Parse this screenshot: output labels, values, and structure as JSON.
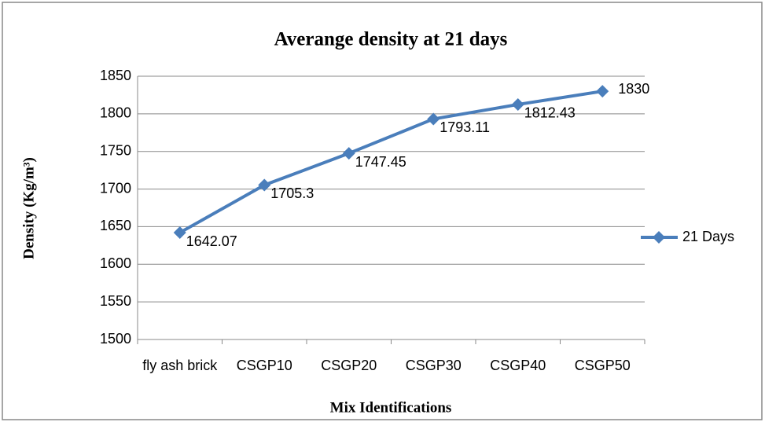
{
  "chart_data": {
    "type": "line",
    "title": "Averange density at 21 days",
    "x_label": "Mix Identifications",
    "y_label": "Density (Kg/m³)",
    "categories": [
      "fly ash brick",
      "CSGP10",
      "CSGP20",
      "CSGP30",
      "CSGP40",
      "CSGP50"
    ],
    "series": [
      {
        "name": "21 Days",
        "color": "#4a7ebb",
        "values": [
          1642.07,
          1705.3,
          1747.45,
          1793.11,
          1812.43,
          1830
        ]
      }
    ],
    "ylim": [
      1500,
      1850
    ],
    "yticks": [
      1500,
      1550,
      1600,
      1650,
      1700,
      1750,
      1800,
      1850
    ],
    "grid": true,
    "legend": "right"
  }
}
